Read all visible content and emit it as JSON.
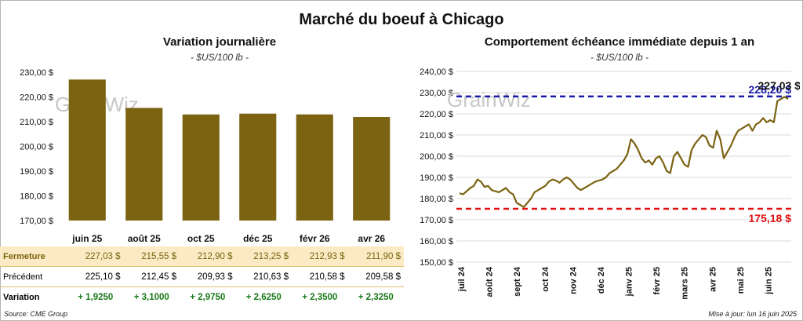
{
  "title": "Marché du boeuf à Chicago",
  "left": {
    "title": "Variation journalière",
    "subtitle": "- $US/100 lb -",
    "watermark": "GrainWiz",
    "chart_data": {
      "type": "bar",
      "categories": [
        "juin 25",
        "août 25",
        "oct 25",
        "déc 25",
        "févr 26",
        "avr 26"
      ],
      "values": [
        227.03,
        215.55,
        212.9,
        213.25,
        212.93,
        211.9
      ],
      "ylim": [
        170,
        230
      ],
      "yticks": [
        "170,00 $",
        "180,00 $",
        "190,00 $",
        "200,00 $",
        "210,00 $",
        "220,00 $",
        "230,00 $"
      ],
      "bar_color": "#7b6312"
    },
    "table": {
      "rows": [
        {
          "label": "Fermeture",
          "values": [
            "227,03  $",
            "215,55  $",
            "212,90  $",
            "213,25  $",
            "212,93  $",
            "211,90  $"
          ]
        },
        {
          "label": "Précédent",
          "values": [
            "225,10  $",
            "212,45  $",
            "209,93  $",
            "210,63  $",
            "210,58  $",
            "209,58  $"
          ]
        },
        {
          "label": "Variation",
          "values": [
            "+ 1,9250",
            "+ 3,1000",
            "+ 2,9750",
            "+ 2,6250",
            "+ 2,3500",
            "+ 2,3250"
          ]
        }
      ]
    },
    "source": "Source: CME Group"
  },
  "right": {
    "title": "Comportement  échéance immédiate depuis 1 an",
    "subtitle": "- $US/100 lb -",
    "watermark": "GrainWiz",
    "chart_data": {
      "type": "line",
      "x_labels": [
        "juil 24",
        "août 24",
        "sept 24",
        "oct 24",
        "nov 24",
        "déc 24",
        "janv 25",
        "févr 25",
        "mars 25",
        "avr 25",
        "mai 25",
        "juin 25"
      ],
      "ylim": [
        150,
        240
      ],
      "yticks": [
        "150,00 $",
        "160,00 $",
        "170,00 $",
        "180,00 $",
        "190,00 $",
        "200,00 $",
        "210,00 $",
        "220,00 $",
        "230,00 $",
        "240,00 $"
      ],
      "series": [
        {
          "values": [
            182.5,
            182,
            183.5,
            185,
            186,
            189,
            188,
            185.5,
            186,
            184,
            183.5,
            183,
            184,
            185,
            183,
            182,
            178,
            177,
            176,
            178,
            180,
            183,
            184,
            185,
            186,
            188,
            189,
            188.5,
            187.5,
            189,
            190,
            189,
            187,
            185,
            184,
            185,
            186,
            187,
            188,
            188.5,
            189,
            190,
            192,
            193,
            194,
            196,
            198,
            201,
            208,
            206,
            203,
            199,
            197,
            198,
            196,
            199,
            200,
            197,
            193,
            192,
            200,
            202,
            199,
            196,
            195,
            203,
            206,
            208,
            210,
            209,
            205,
            204,
            212,
            208,
            199,
            202,
            205,
            209,
            212,
            213,
            214,
            215,
            212,
            215,
            216,
            218,
            216,
            217,
            216,
            226,
            227,
            228,
            227.03
          ],
          "color": "#7b6312"
        }
      ],
      "lines": [
        {
          "value": 228.2,
          "label": "228,20 $",
          "color": "#1a1aa8"
        },
        {
          "value": 175.18,
          "label": "175,18 $",
          "color": "#e01010"
        }
      ],
      "last_label": "227,03 $"
    },
    "updated": "Mise à jour: lun 16 juin 2025"
  }
}
